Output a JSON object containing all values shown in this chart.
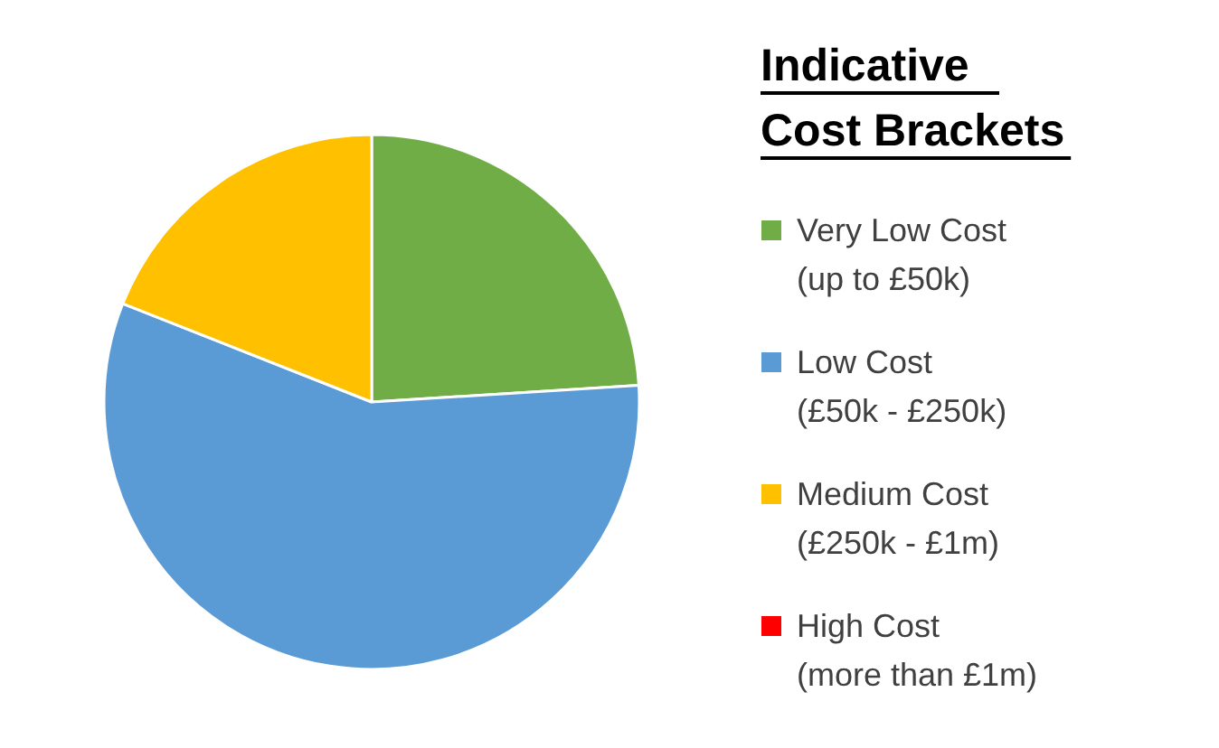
{
  "chart_data": {
    "type": "pie",
    "legend_title": "Indicative Cost Brackets",
    "categories": [
      "Very Low Cost\n(up to £50k)",
      "Low Cost\n(£50k - £250k)",
      "Medium Cost\n(£250k - £1m)",
      "High Cost\n(more than £1m)"
    ],
    "values": [
      24,
      57,
      19,
      0
    ],
    "colors": [
      "#70ad47",
      "#5b9bd5",
      "#ffc000",
      "#ff0000"
    ],
    "legend": "right"
  }
}
